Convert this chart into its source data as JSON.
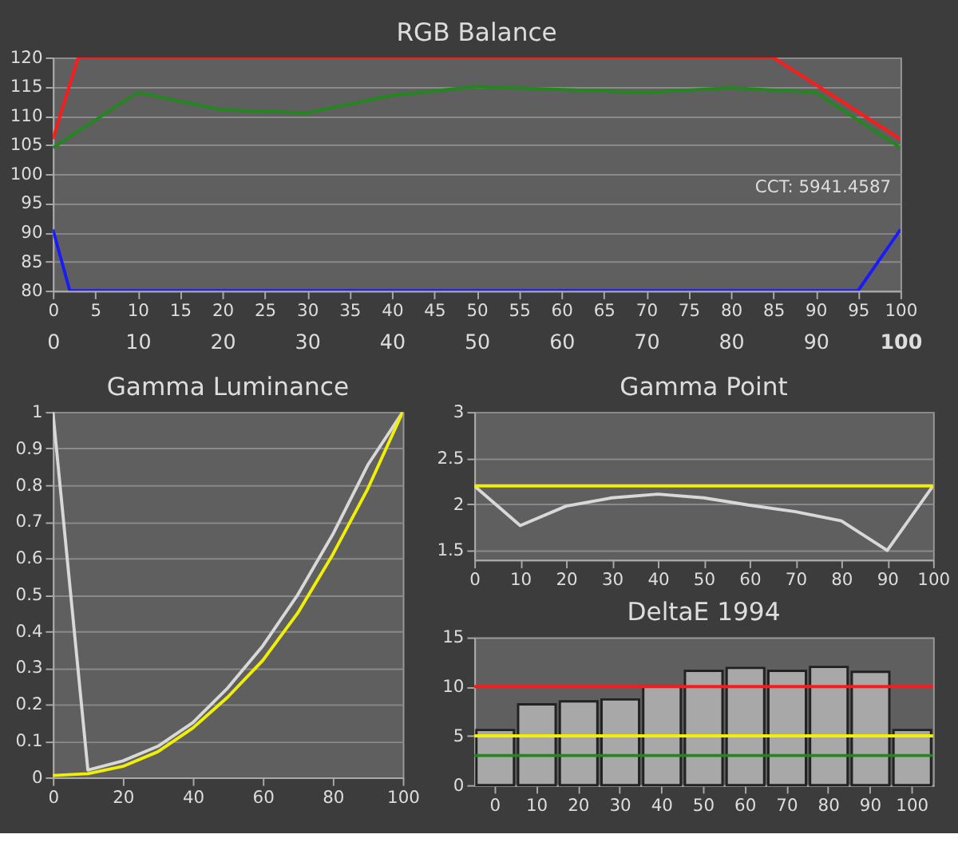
{
  "chart_data": [
    {
      "type": "line",
      "title": "RGB Balance",
      "x": [
        0,
        10,
        20,
        30,
        40,
        50,
        60,
        70,
        80,
        90,
        100
      ],
      "xlim": [
        0,
        100
      ],
      "xticks": [
        0,
        5,
        10,
        15,
        20,
        25,
        30,
        35,
        40,
        45,
        50,
        55,
        60,
        65,
        70,
        75,
        80,
        85,
        90,
        95,
        100
      ],
      "ylim": [
        80,
        120
      ],
      "yticks": [
        80,
        85,
        90,
        95,
        100,
        105,
        110,
        115,
        120
      ],
      "grid": "y",
      "annotations": [
        "CCT: 5941.4587"
      ],
      "x2lim": [
        0,
        100
      ],
      "x2ticks": [
        0,
        10,
        20,
        30,
        40,
        50,
        60,
        70,
        80,
        90,
        100
      ],
      "series": [
        {
          "color": "#ff1a1a",
          "x": [
            0,
            3,
            85,
            100
          ],
          "values": [
            106,
            120,
            120,
            106
          ]
        },
        {
          "color": "#22881e",
          "values": [
            104.5,
            114,
            111,
            110.5,
            113.5,
            115,
            114.5,
            114,
            114.8,
            114,
            104.5
          ]
        },
        {
          "color": "#1a1aff",
          "x": [
            0,
            2,
            95,
            100
          ],
          "values": [
            90.5,
            80,
            80,
            90.5
          ]
        }
      ]
    },
    {
      "type": "line",
      "title": "Gamma Luminance",
      "x": [
        0,
        10,
        20,
        30,
        40,
        50,
        60,
        70,
        80,
        90,
        100
      ],
      "xlim": [
        0,
        100
      ],
      "xticks": [
        0,
        20,
        40,
        60,
        80,
        100
      ],
      "ylim": [
        0,
        1
      ],
      "yticks": [
        0,
        0.1,
        0.2,
        0.3,
        0.4,
        0.5,
        0.6,
        0.7,
        0.8,
        0.9,
        1
      ],
      "grid": "y",
      "series": [
        {
          "color": "#d8d8d8",
          "values": [
            1,
            0.02,
            0.045,
            0.085,
            0.15,
            0.245,
            0.36,
            0.5,
            0.665,
            0.855,
            1
          ]
        },
        {
          "color": "#f0f000",
          "values": [
            0.005,
            0.01,
            0.03,
            0.07,
            0.135,
            0.22,
            0.32,
            0.45,
            0.61,
            0.79,
            1
          ]
        }
      ]
    },
    {
      "type": "line",
      "title": "Gamma Point",
      "x": [
        0,
        10,
        20,
        30,
        40,
        50,
        60,
        70,
        80,
        90,
        100
      ],
      "xlim": [
        0,
        100
      ],
      "xticks": [
        0,
        10,
        20,
        30,
        40,
        50,
        60,
        70,
        80,
        90,
        100
      ],
      "ylim": [
        1.4,
        3
      ],
      "yticks": [
        1.5,
        2,
        2.5,
        3
      ],
      "grid": "y",
      "series": [
        {
          "color": "#d8d8d8",
          "values": [
            2.2,
            1.77,
            1.98,
            2.07,
            2.11,
            2.07,
            1.99,
            1.92,
            1.82,
            1.5,
            2.2
          ]
        }
      ],
      "ref_lines": [
        {
          "axis": "y",
          "value": 2.2,
          "color": "#f0f000"
        }
      ]
    },
    {
      "type": "bar",
      "title": "DeltaE 1994",
      "categories": [
        "0",
        "10",
        "20",
        "30",
        "40",
        "50",
        "60",
        "70",
        "80",
        "90",
        "100"
      ],
      "values": [
        5.6,
        8.2,
        8.5,
        8.7,
        10,
        11.6,
        11.9,
        11.6,
        12,
        11.5,
        5.6
      ],
      "color": "#a8a8a8",
      "ylim": [
        0,
        15
      ],
      "yticks": [
        0,
        5,
        10,
        15
      ],
      "ref_lines": [
        {
          "axis": "y",
          "value": 10,
          "color": "#ff1a1a"
        },
        {
          "axis": "y",
          "value": 5,
          "color": "#f0f000"
        },
        {
          "axis": "y",
          "value": 3,
          "color": "#22881e"
        }
      ]
    }
  ]
}
